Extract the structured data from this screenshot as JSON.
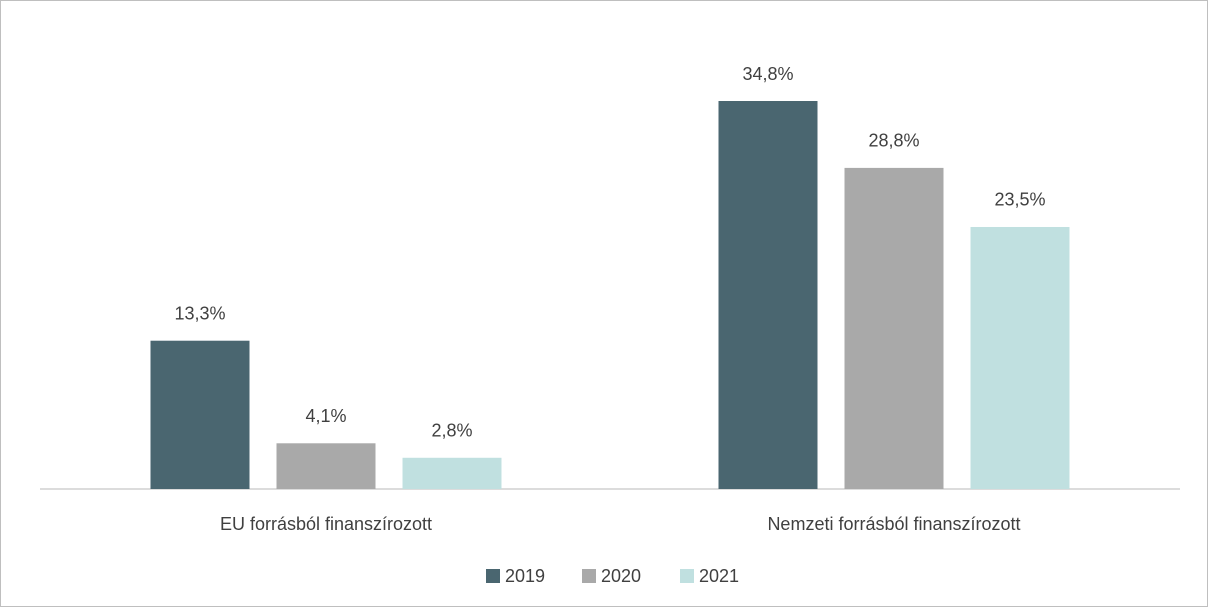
{
  "chart_data": {
    "type": "bar",
    "categories": [
      "EU forrásból finanszírozott",
      "Nemzeti forrásból finanszírozott"
    ],
    "series": [
      {
        "name": "2019",
        "color": "#4a6670",
        "values": [
          13.3,
          34.8
        ],
        "value_labels": [
          "13,3%",
          "34,8%"
        ]
      },
      {
        "name": "2020",
        "color": "#a9a9a9",
        "values": [
          4.1,
          28.8
        ],
        "value_labels": [
          "4,1%",
          "28,8%"
        ]
      },
      {
        "name": "2021",
        "color": "#c0e0e0",
        "values": [
          2.8,
          23.5
        ],
        "value_labels": [
          "2,8%",
          "23,5%"
        ]
      }
    ],
    "legend": "bottom"
  }
}
